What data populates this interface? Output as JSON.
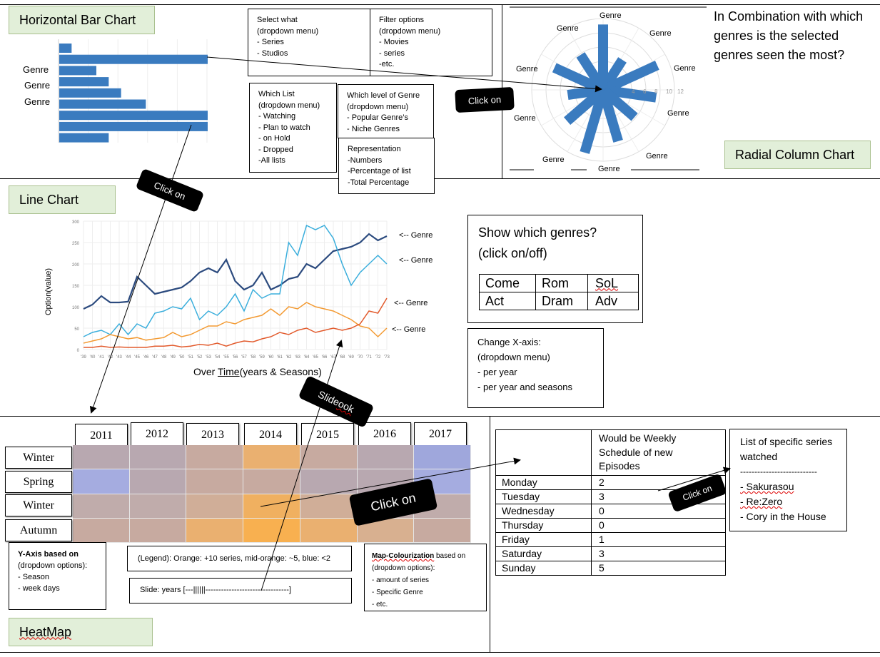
{
  "sections": {
    "horizontal_bar_title": "Horizontal Bar Chart",
    "radial_title": "Radial Column Chart",
    "line_title": "Line Chart",
    "heatmap_title": "HeatMap"
  },
  "bar_chart": {
    "genre_labels": [
      "Genre",
      "Genre",
      "Genre"
    ],
    "values": [
      3,
      36,
      9,
      12,
      15,
      21,
      36,
      36,
      12
    ]
  },
  "select_box": {
    "lines": [
      "Select what",
      "(dropdown menu)",
      "- Series",
      "- Studios"
    ]
  },
  "filter_box": {
    "lines": [
      "Filter options",
      "(dropdown menu)",
      "- Movies",
      "- series",
      "-etc."
    ]
  },
  "list_box": {
    "lines": [
      "Which List",
      "(dropdown menu)",
      "- Watching",
      "- Plan to watch",
      "- on Hold",
      "- Dropped",
      "-All lists"
    ]
  },
  "level_box": {
    "lines": [
      "Which level of Genre",
      "(dropdown menu)",
      "- Popular Genre’s",
      "- Niche Genres"
    ]
  },
  "representation_box": {
    "lines": [
      "Representation",
      "-Numbers",
      "-Percentage of list",
      "-Total Percentage"
    ]
  },
  "pills": {
    "click_top": "Click on",
    "click_diag": "Click on",
    "slide": "Slide ",
    "slide_2": "ook",
    "click_heat": "Click on",
    "click_sched": "Click on"
  },
  "radial": {
    "genre_labels": [
      "Genre",
      "Genre",
      "Genre",
      "Genre",
      "Genre",
      "Genre",
      "Genre",
      "Genre",
      "Genre",
      "Genre",
      "Genre"
    ],
    "tick_labels": [
      "4",
      "6",
      "8",
      "10",
      "12"
    ],
    "question": "In Combination with which genres is the selected genres seen the most?"
  },
  "line_chart": {
    "ylabel": "Option(value)",
    "xlabel_pre": "Over ",
    "xlabel_time": "Time",
    "xlabel_post": "(years & Seasons)",
    "series_labels": [
      "<-- Genre",
      "<-- Genre",
      "<-- Genre",
      "<-- Genre"
    ],
    "y_ticks": [
      "0",
      "50",
      "100",
      "150",
      "200",
      "250",
      "300"
    ],
    "x_ticks": [
      "'39",
      "'40",
      "'41",
      "'42",
      "'43",
      "'44",
      "'45",
      "'46",
      "'47",
      "'48",
      "'49",
      "'50",
      "'51",
      "'52",
      "'53",
      "'54",
      "'55",
      "'56",
      "'57",
      "'58",
      "'59",
      "'60",
      "'61",
      "'62",
      "'63",
      "'64",
      "'65",
      "'66",
      "'67",
      "'68",
      "'69",
      "'70",
      "'71",
      "'72",
      "'73"
    ]
  },
  "chart_data": [
    {
      "type": "bar",
      "orientation": "horizontal",
      "values": [
        3,
        36,
        9,
        12,
        15,
        21,
        36,
        36,
        12
      ]
    },
    {
      "type": "bar",
      "orientation": "radial",
      "tick_labels": [
        "4",
        "6",
        "8",
        "10",
        "12"
      ],
      "values": [
        11,
        6,
        10,
        9,
        7,
        9,
        11,
        8,
        6,
        9,
        7
      ]
    },
    {
      "type": "line",
      "ylabel": "Option(value)",
      "ylim": [
        0,
        300
      ],
      "x": [
        "'39",
        "'40",
        "'41",
        "'42",
        "'43",
        "'44",
        "'45",
        "'46",
        "'47",
        "'48",
        "'49",
        "'50",
        "'51",
        "'52",
        "'53",
        "'54",
        "'55",
        "'56",
        "'57",
        "'58",
        "'59",
        "'60",
        "'61",
        "'62",
        "'63",
        "'64",
        "'65",
        "'66",
        "'67",
        "'68",
        "'69",
        "'70",
        "'71",
        "'72",
        "'73"
      ],
      "series": [
        {
          "color": "#2b4a7e",
          "values": [
            95,
            105,
            125,
            110,
            110,
            112,
            170,
            150,
            130,
            135,
            140,
            145,
            160,
            180,
            190,
            180,
            210,
            160,
            140,
            150,
            180,
            140,
            150,
            165,
            170,
            200,
            190,
            210,
            230,
            235,
            240,
            250,
            270,
            255,
            265
          ]
        },
        {
          "color": "#3aaedc",
          "values": [
            30,
            40,
            45,
            35,
            60,
            35,
            60,
            50,
            85,
            90,
            100,
            95,
            120,
            70,
            90,
            80,
            100,
            130,
            90,
            140,
            120,
            130,
            130,
            250,
            220,
            290,
            280,
            290,
            260,
            200,
            150,
            180,
            200,
            220,
            200
          ]
        },
        {
          "color": "#f39a32",
          "values": [
            15,
            20,
            25,
            35,
            30,
            25,
            28,
            22,
            25,
            28,
            40,
            30,
            35,
            45,
            55,
            55,
            65,
            60,
            70,
            75,
            80,
            95,
            80,
            100,
            95,
            110,
            100,
            95,
            90,
            80,
            70,
            55,
            50,
            30,
            50
          ]
        },
        {
          "color": "#e25a2c",
          "values": [
            5,
            5,
            8,
            5,
            6,
            5,
            5,
            5,
            8,
            8,
            10,
            6,
            8,
            12,
            10,
            15,
            8,
            15,
            20,
            18,
            25,
            30,
            40,
            35,
            45,
            50,
            40,
            45,
            50,
            45,
            50,
            60,
            90,
            85,
            120
          ]
        }
      ]
    }
  ],
  "genre_toggle": {
    "title_line1": "Show which genres?",
    "title_line2": "(click on/off)",
    "cells": [
      "Come",
      "Rom",
      "SoL",
      "Act",
      "Dram",
      "Adv"
    ]
  },
  "xaxis_box": {
    "lines": [
      "Change X-axis:",
      "(dropdown menu)",
      "- per year",
      "- per year and seasons"
    ]
  },
  "heatmap": {
    "years": [
      "2011",
      "2012",
      "2013",
      "2014",
      "2015",
      "2016",
      "2017"
    ],
    "seasons": [
      "Winter",
      "Spring",
      "Winter",
      "Autumn"
    ],
    "cells": [
      [
        "#b8a8b0",
        "#b8a8b0",
        "#c7aaa0",
        "#eab070",
        "#c7aaa0",
        "#b8a8b0",
        "#9fa7dc"
      ],
      [
        "#a5ace0",
        "#b8a8b0",
        "#c7aaa0",
        "#c7aaa0",
        "#b8a8b0",
        "#b8a8b0",
        "#a5ace0"
      ],
      [
        "#c0acab",
        "#c0acab",
        "#d0ae98",
        "#f0b060",
        "#d0ae98",
        "#c0acab",
        "#c0acab"
      ],
      [
        "#c7aaa0",
        "#c7aaa0",
        "#eab070",
        "#f8b050",
        "#eab070",
        "#d8b090",
        "#c7aaa0"
      ]
    ],
    "yaxis_title": "Y-Axis based on",
    "yaxis_lines": [
      "(dropdown options):",
      "- Season",
      "- week days"
    ],
    "legend": "(Legend): Orange: +10 series, mid-orange: ~5, blue: <2",
    "slide": "Slide: years [---||||||--------------------------------]",
    "map_title": "Map-Colourization",
    "map_title_rest": " based on",
    "map_lines": [
      "(dropdown options):",
      "- amount of series",
      "- Specific Genre",
      "- etc."
    ]
  },
  "schedule": {
    "header": [
      "Would be Weekly",
      "Schedule of new",
      "Episodes"
    ],
    "rows": [
      {
        "day": "Monday",
        "value": "2"
      },
      {
        "day": "Tuesday",
        "value": "3"
      },
      {
        "day": "Wednesday",
        "value": "0"
      },
      {
        "day": "Thursday",
        "value": "0"
      },
      {
        "day": "Friday",
        "value": "1"
      },
      {
        "day": "Saturday",
        "value": "3"
      },
      {
        "day": "Sunday",
        "value": "5"
      }
    ]
  },
  "series_list": {
    "title_line1": "List of specific series",
    "title_line2": "watched",
    "divider": "---------------------------",
    "items": [
      "- Sakurasou",
      "- Re:Zero",
      "- Cory in the House"
    ]
  }
}
